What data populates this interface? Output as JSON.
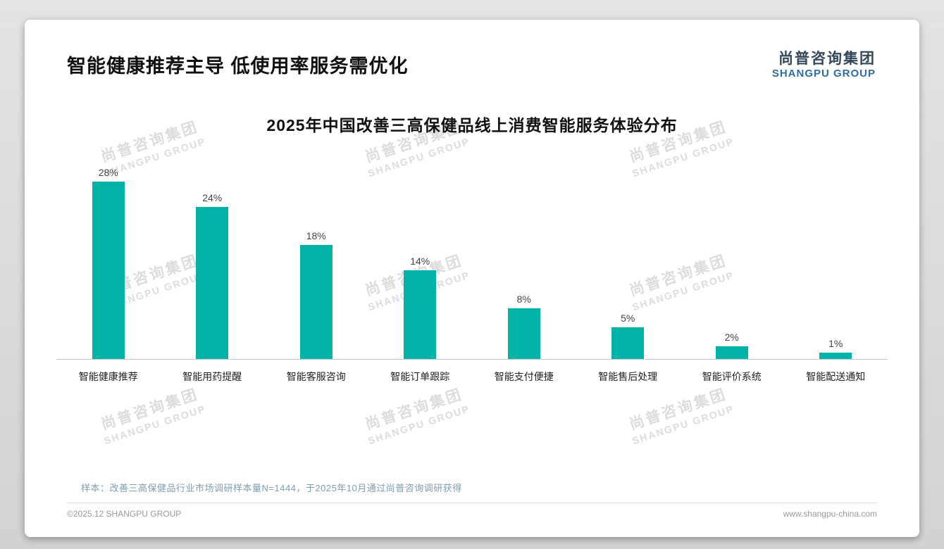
{
  "page": {
    "header_title": "智能健康推荐主导 低使用率服务需优化",
    "logo": {
      "cn": "尚普咨询集团",
      "en": "SHANGPU GROUP"
    },
    "watermark": {
      "cn": "尚普咨询集团",
      "en": "SHANGPU GROUP"
    },
    "note": "样本：改善三高保健品行业市场调研样本量N=1444，于2025年10月通过尚普咨询调研获得",
    "footer_left": "©2025.12 SHANGPU GROUP",
    "footer_right": "www.shangpu-china.com"
  },
  "chart_data": {
    "type": "bar",
    "title": "2025年中国改善三高保健品线上消费智能服务体验分布",
    "categories": [
      "智能健康推荐",
      "智能用药提醒",
      "智能客服咨询",
      "智能订单跟踪",
      "智能支付便捷",
      "智能售后处理",
      "智能评价系统",
      "智能配送通知"
    ],
    "values": [
      28,
      24,
      18,
      14,
      8,
      5,
      2,
      1
    ],
    "unit": "%",
    "bar_color": "#00b3a6",
    "xlabel": "",
    "ylabel": "",
    "ylim": [
      0,
      30
    ],
    "grid": false,
    "value_labels": true,
    "legend": "none"
  }
}
